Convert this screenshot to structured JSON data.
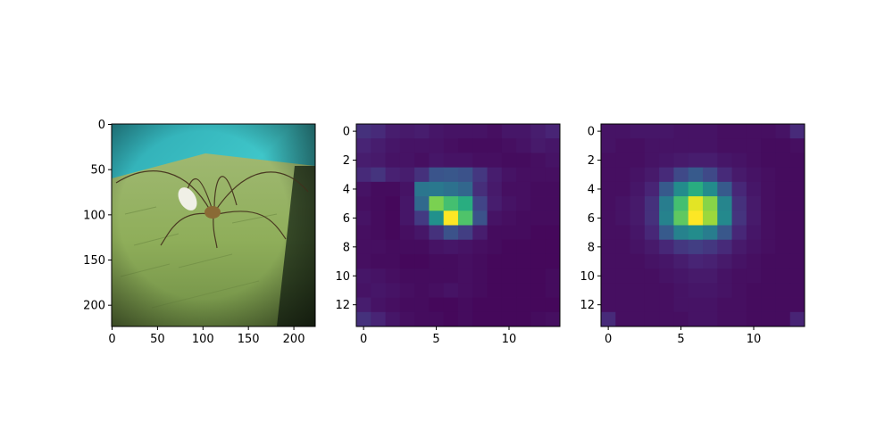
{
  "chart_data": [
    {
      "type": "image",
      "content": "photograph of a harvestman spider on a weathered green wooden surface, cyan background",
      "xlim": [
        -0.5,
        223.5
      ],
      "ylim": [
        223.5,
        -0.5
      ],
      "xticks": [
        0,
        50,
        100,
        150,
        200
      ],
      "yticks": [
        0,
        50,
        100,
        150,
        200
      ],
      "colors": {
        "background": "#3fc6c9",
        "surface": "#8fae5a",
        "shadow": "#1f2f1a"
      }
    },
    {
      "type": "heatmap",
      "colormap": "viridis",
      "vmin": 0,
      "vmax": 1,
      "xlim": [
        -0.5,
        13.5
      ],
      "ylim": [
        13.5,
        -0.5
      ],
      "xticks": [
        0,
        5,
        10
      ],
      "yticks": [
        0,
        2,
        4,
        6,
        8,
        10,
        12
      ],
      "values": [
        [
          0.14,
          0.12,
          0.08,
          0.07,
          0.08,
          0.06,
          0.05,
          0.05,
          0.05,
          0.04,
          0.06,
          0.06,
          0.08,
          0.1
        ],
        [
          0.1,
          0.08,
          0.06,
          0.05,
          0.05,
          0.05,
          0.04,
          0.03,
          0.03,
          0.03,
          0.04,
          0.05,
          0.07,
          0.06
        ],
        [
          0.08,
          0.07,
          0.05,
          0.05,
          0.04,
          0.06,
          0.05,
          0.05,
          0.04,
          0.04,
          0.03,
          0.03,
          0.04,
          0.05
        ],
        [
          0.12,
          0.15,
          0.09,
          0.08,
          0.14,
          0.26,
          0.27,
          0.25,
          0.16,
          0.08,
          0.05,
          0.04,
          0.04,
          0.04
        ],
        [
          0.05,
          0.03,
          0.03,
          0.05,
          0.39,
          0.4,
          0.37,
          0.33,
          0.13,
          0.07,
          0.04,
          0.04,
          0.03,
          0.03
        ],
        [
          0.04,
          0.03,
          0.02,
          0.06,
          0.34,
          0.8,
          0.7,
          0.62,
          0.2,
          0.08,
          0.05,
          0.04,
          0.03,
          0.03
        ],
        [
          0.05,
          0.03,
          0.02,
          0.06,
          0.17,
          0.5,
          1.0,
          0.72,
          0.25,
          0.05,
          0.04,
          0.03,
          0.03,
          0.03
        ],
        [
          0.04,
          0.03,
          0.02,
          0.04,
          0.06,
          0.14,
          0.25,
          0.18,
          0.08,
          0.03,
          0.03,
          0.03,
          0.02,
          0.02
        ],
        [
          0.04,
          0.04,
          0.03,
          0.03,
          0.03,
          0.05,
          0.06,
          0.05,
          0.04,
          0.03,
          0.02,
          0.02,
          0.02,
          0.02
        ],
        [
          0.04,
          0.03,
          0.03,
          0.02,
          0.02,
          0.03,
          0.03,
          0.04,
          0.03,
          0.02,
          0.02,
          0.02,
          0.02,
          0.02
        ],
        [
          0.06,
          0.05,
          0.04,
          0.03,
          0.03,
          0.03,
          0.03,
          0.04,
          0.03,
          0.02,
          0.02,
          0.02,
          0.02,
          0.03
        ],
        [
          0.05,
          0.06,
          0.05,
          0.04,
          0.03,
          0.04,
          0.05,
          0.04,
          0.03,
          0.02,
          0.02,
          0.02,
          0.02,
          0.03
        ],
        [
          0.08,
          0.05,
          0.04,
          0.03,
          0.03,
          0.02,
          0.02,
          0.03,
          0.02,
          0.02,
          0.02,
          0.02,
          0.02,
          0.02
        ],
        [
          0.14,
          0.1,
          0.06,
          0.04,
          0.03,
          0.03,
          0.02,
          0.03,
          0.02,
          0.02,
          0.02,
          0.02,
          0.03,
          0.04
        ]
      ]
    },
    {
      "type": "heatmap",
      "colormap": "viridis",
      "vmin": 0,
      "vmax": 1,
      "xlim": [
        -0.5,
        13.5
      ],
      "ylim": [
        13.5,
        -0.5
      ],
      "xticks": [
        0,
        5,
        10
      ],
      "yticks": [
        0,
        2,
        4,
        6,
        8,
        10,
        12
      ],
      "values": [
        [
          0.05,
          0.05,
          0.06,
          0.06,
          0.06,
          0.05,
          0.05,
          0.05,
          0.04,
          0.04,
          0.04,
          0.04,
          0.05,
          0.12
        ],
        [
          0.05,
          0.04,
          0.04,
          0.05,
          0.05,
          0.05,
          0.05,
          0.05,
          0.04,
          0.04,
          0.04,
          0.03,
          0.03,
          0.04
        ],
        [
          0.04,
          0.04,
          0.04,
          0.05,
          0.06,
          0.07,
          0.08,
          0.08,
          0.06,
          0.05,
          0.04,
          0.03,
          0.03,
          0.03
        ],
        [
          0.04,
          0.04,
          0.05,
          0.07,
          0.12,
          0.22,
          0.28,
          0.22,
          0.12,
          0.07,
          0.05,
          0.04,
          0.03,
          0.03
        ],
        [
          0.04,
          0.04,
          0.06,
          0.1,
          0.28,
          0.48,
          0.62,
          0.48,
          0.28,
          0.11,
          0.06,
          0.04,
          0.03,
          0.03
        ],
        [
          0.04,
          0.05,
          0.07,
          0.14,
          0.42,
          0.7,
          0.96,
          0.82,
          0.45,
          0.14,
          0.07,
          0.04,
          0.03,
          0.03
        ],
        [
          0.04,
          0.05,
          0.07,
          0.14,
          0.44,
          0.75,
          1.0,
          0.85,
          0.47,
          0.15,
          0.07,
          0.04,
          0.03,
          0.03
        ],
        [
          0.04,
          0.04,
          0.06,
          0.11,
          0.28,
          0.44,
          0.48,
          0.42,
          0.27,
          0.11,
          0.06,
          0.04,
          0.03,
          0.03
        ],
        [
          0.04,
          0.04,
          0.05,
          0.07,
          0.11,
          0.16,
          0.18,
          0.16,
          0.12,
          0.07,
          0.05,
          0.04,
          0.03,
          0.03
        ],
        [
          0.04,
          0.04,
          0.04,
          0.05,
          0.06,
          0.08,
          0.1,
          0.09,
          0.07,
          0.05,
          0.04,
          0.03,
          0.03,
          0.03
        ],
        [
          0.04,
          0.04,
          0.04,
          0.04,
          0.05,
          0.06,
          0.07,
          0.07,
          0.05,
          0.04,
          0.04,
          0.03,
          0.03,
          0.03
        ],
        [
          0.04,
          0.04,
          0.04,
          0.04,
          0.04,
          0.05,
          0.06,
          0.06,
          0.05,
          0.04,
          0.03,
          0.03,
          0.03,
          0.03
        ],
        [
          0.04,
          0.04,
          0.04,
          0.04,
          0.04,
          0.05,
          0.05,
          0.05,
          0.04,
          0.04,
          0.03,
          0.03,
          0.03,
          0.03
        ],
        [
          0.12,
          0.04,
          0.04,
          0.04,
          0.04,
          0.04,
          0.05,
          0.05,
          0.04,
          0.04,
          0.03,
          0.03,
          0.03,
          0.1
        ]
      ]
    }
  ]
}
